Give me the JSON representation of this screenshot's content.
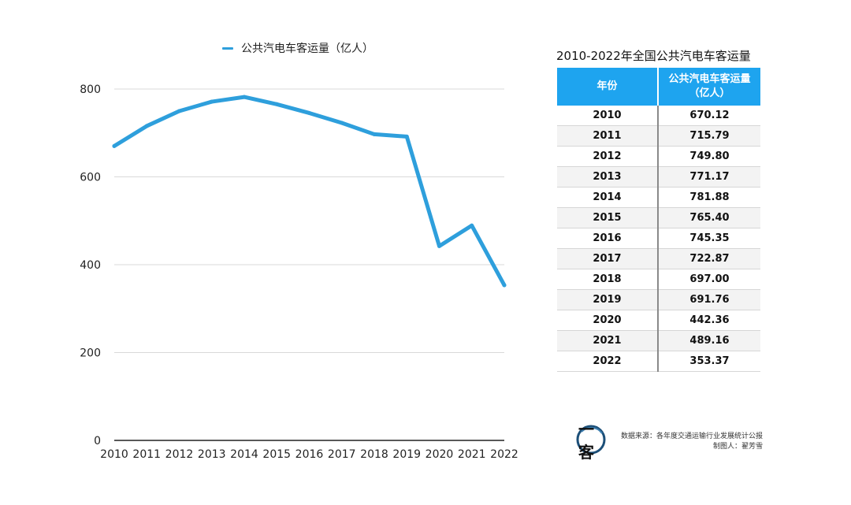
{
  "chart_data": {
    "type": "line",
    "legend_label": "公共汽电车客运量（亿人）",
    "x": [
      "2010",
      "2011",
      "2012",
      "2013",
      "2014",
      "2015",
      "2016",
      "2017",
      "2018",
      "2019",
      "2020",
      "2021",
      "2022"
    ],
    "series": [
      {
        "name": "公共汽电车客运量（亿人）",
        "values": [
          670.12,
          715.79,
          749.8,
          771.17,
          781.88,
          765.4,
          745.35,
          722.87,
          697.0,
          691.76,
          442.36,
          489.16,
          353.37
        ],
        "color": "#2e9fdc"
      }
    ],
    "yticks": [
      0,
      200,
      400,
      600,
      800
    ],
    "ylim": [
      0,
      800
    ],
    "grid": true
  },
  "table": {
    "title": "2010-2022年全国公共汽电车客运量",
    "headers": [
      "年份",
      "公共汽电车客运量（亿人）"
    ],
    "rows": [
      [
        "2010",
        "670.12"
      ],
      [
        "2011",
        "715.79"
      ],
      [
        "2012",
        "749.80"
      ],
      [
        "2013",
        "771.17"
      ],
      [
        "2014",
        "781.88"
      ],
      [
        "2015",
        "765.40"
      ],
      [
        "2016",
        "745.35"
      ],
      [
        "2017",
        "722.87"
      ],
      [
        "2018",
        "697.00"
      ],
      [
        "2019",
        "691.76"
      ],
      [
        "2020",
        "442.36"
      ],
      [
        "2021",
        "489.16"
      ],
      [
        "2022",
        "353.37"
      ]
    ],
    "header_color": "#1ea4ef"
  },
  "logo": {
    "text": "一客"
  },
  "footnote": {
    "source": "数据来源：各年度交通运输行业发展统计公报",
    "author": "制图人：翟芳雪"
  }
}
